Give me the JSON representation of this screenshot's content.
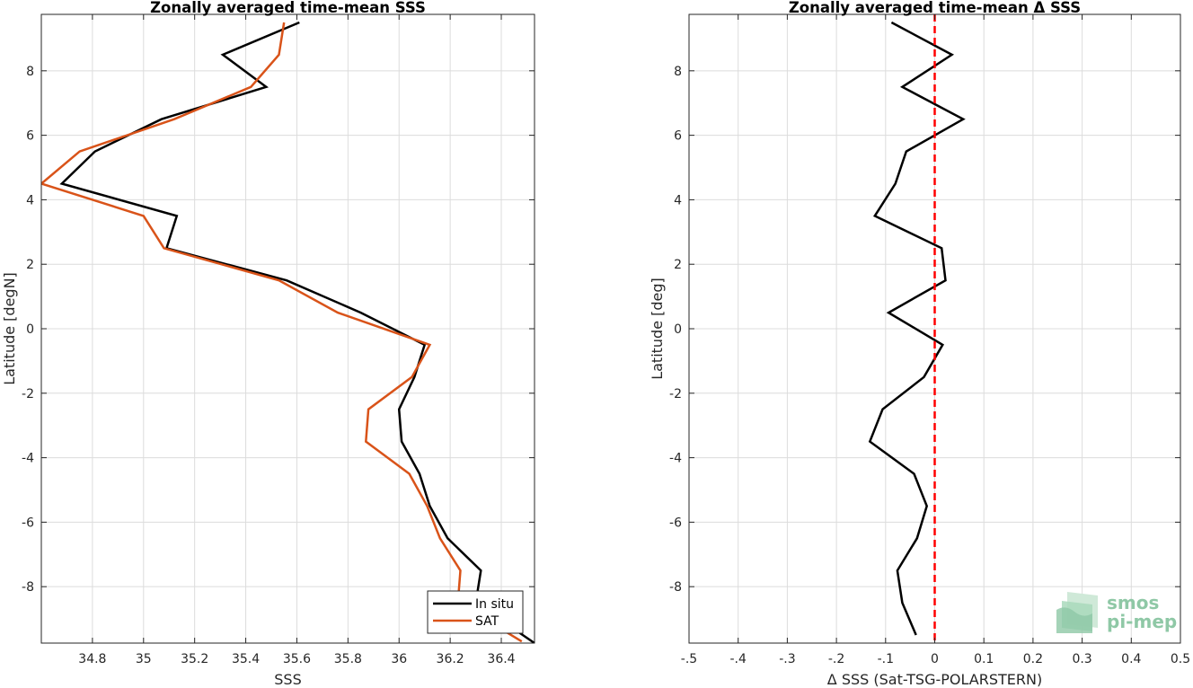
{
  "chart_data": [
    {
      "type": "line",
      "title": "Zonally averaged time-mean SSS",
      "xlabel": "SSS",
      "ylabel": "Latitude [degN]",
      "xlim": [
        34.6,
        36.53
      ],
      "ylim": [
        -9.75,
        9.75
      ],
      "xticks": [
        34.8,
        35,
        35.2,
        35.4,
        35.6,
        35.8,
        36,
        36.2,
        36.4
      ],
      "yticks": [
        -8,
        -6,
        -4,
        -2,
        0,
        2,
        4,
        6,
        8
      ],
      "grid": true,
      "legend": "bottom-right",
      "series": [
        {
          "name": "In situ",
          "color": "#000000",
          "points": [
            [
              35.61,
              9.5
            ],
            [
              35.31,
              8.5
            ],
            [
              35.48,
              7.5
            ],
            [
              35.07,
              6.5
            ],
            [
              34.81,
              5.5
            ],
            [
              34.68,
              4.5
            ],
            [
              35.13,
              3.5
            ],
            [
              35.09,
              2.5
            ],
            [
              35.56,
              1.5
            ],
            [
              35.85,
              0.5
            ],
            [
              36.1,
              -0.5
            ],
            [
              36.06,
              -1.5
            ],
            [
              36.0,
              -2.5
            ],
            [
              36.01,
              -3.5
            ],
            [
              36.08,
              -4.5
            ],
            [
              36.12,
              -5.5
            ],
            [
              36.19,
              -6.5
            ],
            [
              36.32,
              -7.5
            ],
            [
              36.3,
              -8.5
            ],
            [
              36.53,
              -9.75
            ]
          ]
        },
        {
          "name": "SAT",
          "color": "#d95319",
          "points": [
            [
              35.55,
              9.5
            ],
            [
              35.53,
              8.5
            ],
            [
              35.42,
              7.5
            ],
            [
              35.12,
              6.5
            ],
            [
              34.75,
              5.5
            ],
            [
              34.6,
              4.5
            ],
            [
              35.0,
              3.5
            ],
            [
              35.08,
              2.5
            ],
            [
              35.53,
              1.5
            ],
            [
              35.76,
              0.5
            ],
            [
              36.12,
              -0.5
            ],
            [
              36.05,
              -1.5
            ],
            [
              35.88,
              -2.5
            ],
            [
              35.87,
              -3.5
            ],
            [
              36.04,
              -4.5
            ],
            [
              36.11,
              -5.5
            ],
            [
              36.16,
              -6.5
            ],
            [
              36.24,
              -7.5
            ],
            [
              36.23,
              -8.5
            ],
            [
              36.48,
              -9.7
            ]
          ]
        }
      ]
    },
    {
      "type": "line",
      "title": "Zonally averaged time-mean Δ SSS",
      "xlabel": "Δ SSS (Sat-TSG-POLARSTERN)",
      "ylabel": "Latitude [deg]",
      "xlim": [
        -0.5,
        0.5
      ],
      "ylim": [
        -9.75,
        9.75
      ],
      "xticks": [
        -0.5,
        -0.4,
        -0.3,
        -0.2,
        -0.1,
        0,
        0.1,
        0.2,
        0.3,
        0.4,
        0.5
      ],
      "yticks": [
        -8,
        -6,
        -4,
        -2,
        0,
        2,
        4,
        6,
        8
      ],
      "grid": true,
      "series": [
        {
          "color": "#000000",
          "points": [
            [
              -0.088,
              9.5
            ],
            [
              0.035,
              8.5
            ],
            [
              -0.066,
              7.5
            ],
            [
              0.058,
              6.5
            ],
            [
              -0.058,
              5.5
            ],
            [
              -0.08,
              4.5
            ],
            [
              -0.122,
              3.5
            ],
            [
              0.014,
              2.5
            ],
            [
              0.022,
              1.5
            ],
            [
              -0.094,
              0.5
            ],
            [
              0.016,
              -0.5
            ],
            [
              -0.022,
              -1.5
            ],
            [
              -0.106,
              -2.5
            ],
            [
              -0.132,
              -3.5
            ],
            [
              -0.042,
              -4.5
            ],
            [
              -0.016,
              -5.5
            ],
            [
              -0.036,
              -6.5
            ],
            [
              -0.076,
              -7.5
            ],
            [
              -0.066,
              -8.5
            ],
            [
              -0.038,
              -9.5
            ]
          ]
        }
      ],
      "reference_line": {
        "x": 0,
        "color": "#ff0000",
        "style": "dashed"
      }
    }
  ],
  "logo": {
    "line1": "smos",
    "line2": "pi-mep",
    "color": "#8fc8a6"
  }
}
